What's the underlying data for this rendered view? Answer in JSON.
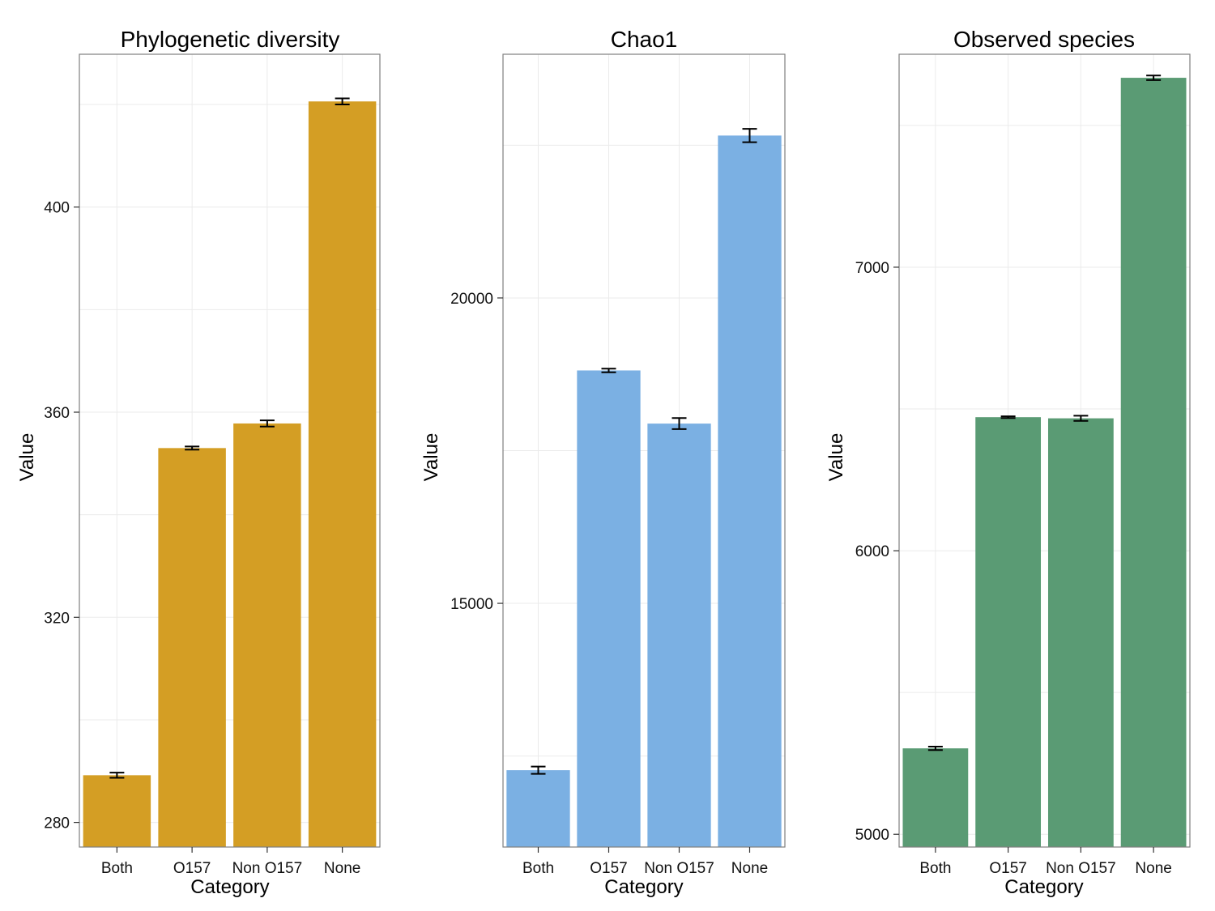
{
  "chart_data": [
    {
      "type": "bar",
      "title": "Phylogenetic diversity",
      "xlabel": "Category",
      "ylabel": "Value",
      "categories": [
        "Both",
        "O157",
        "Non O157",
        "None"
      ],
      "values": [
        289.2,
        353.0,
        357.8,
        420.6
      ],
      "errors": [
        0.5,
        0.3,
        0.6,
        0.6
      ],
      "ylim": [
        275.2,
        429.8
      ],
      "yticks": [
        280,
        320,
        360,
        400
      ],
      "grid": true,
      "bar_color": "#D49E24"
    },
    {
      "type": "bar",
      "title": "Chao1",
      "xlabel": "Category",
      "ylabel": "Value",
      "categories": [
        "Both",
        "O157",
        "Non O157",
        "None"
      ],
      "values": [
        12268,
        18813,
        17943,
        22659
      ],
      "errors": [
        60,
        30,
        90,
        110
      ],
      "ylim": [
        11010,
        23990
      ],
      "yticks": [
        15000,
        20000
      ],
      "grid": true,
      "bar_color": "#7BB0E3"
    },
    {
      "type": "bar",
      "title": "Observed species",
      "xlabel": "Category",
      "ylabel": "Value",
      "categories": [
        "Both",
        "O157",
        "Non O157",
        "None"
      ],
      "values": [
        5303,
        6471,
        6467,
        7668
      ],
      "errors": [
        6,
        3,
        9,
        8
      ],
      "ylim": [
        4955,
        7751
      ],
      "yticks": [
        5000,
        6000,
        7000
      ],
      "grid": true,
      "bar_color": "#5A9B74"
    }
  ]
}
